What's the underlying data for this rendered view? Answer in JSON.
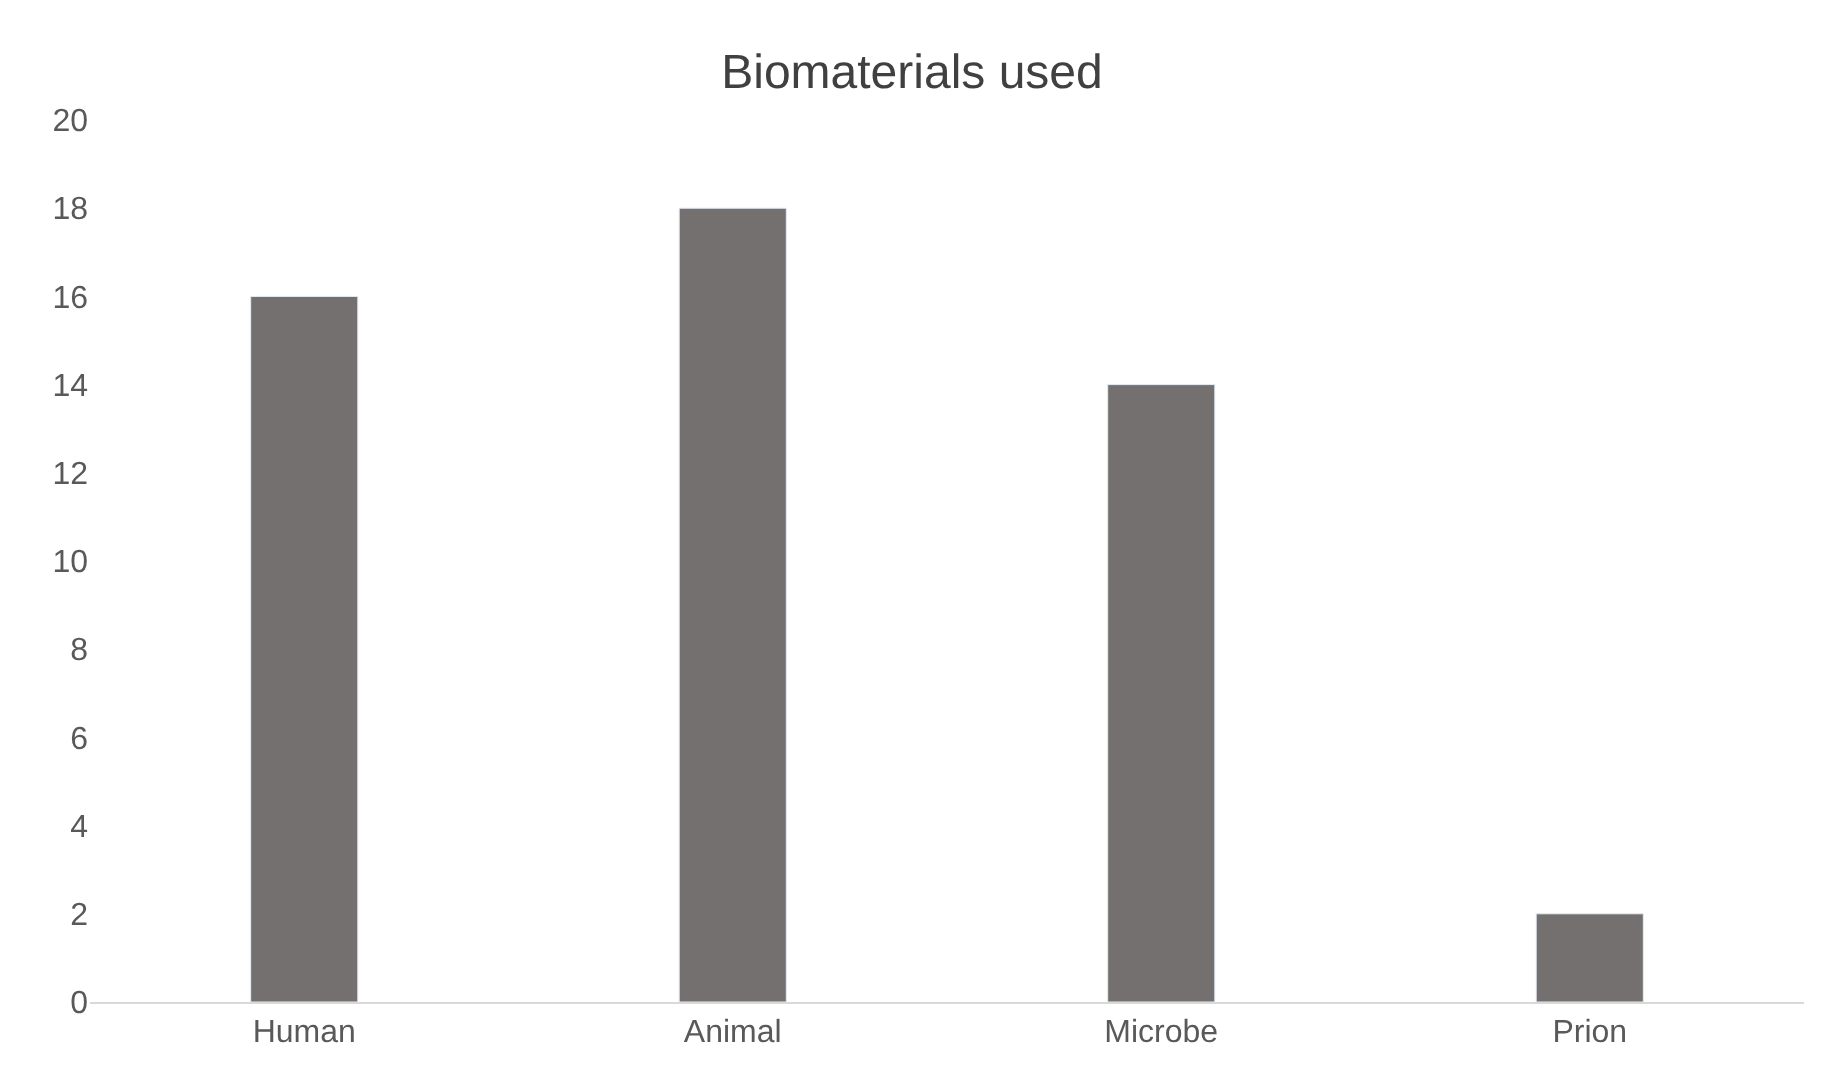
{
  "chart_data": {
    "type": "bar",
    "title": "Biomaterials used",
    "categories": [
      "Human",
      "Animal",
      "Microbe",
      "Prion"
    ],
    "values": [
      16,
      18,
      14,
      2
    ],
    "color": "#74706f",
    "ylim": [
      0,
      20
    ],
    "yticks": [
      0,
      2,
      4,
      6,
      8,
      10,
      12,
      14,
      16,
      18,
      20
    ],
    "grid": false
  }
}
